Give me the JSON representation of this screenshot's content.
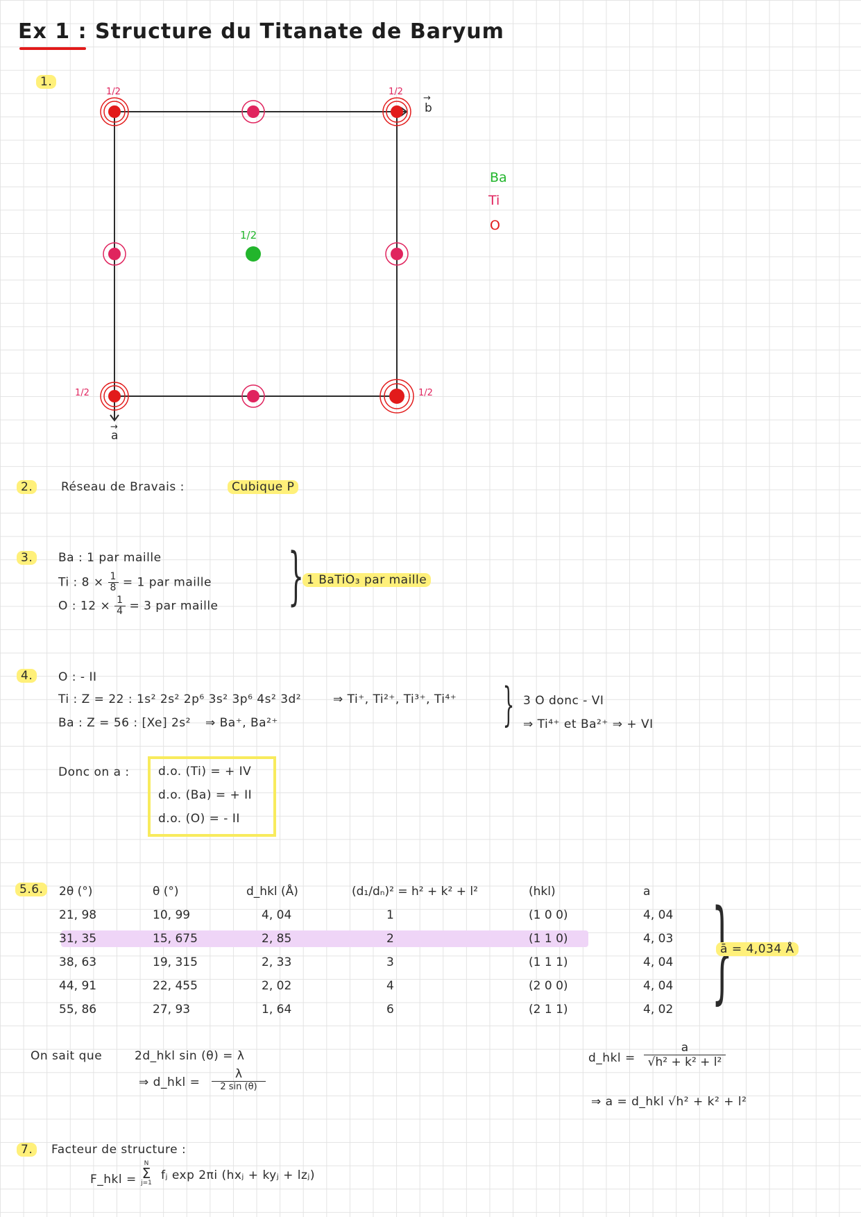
{
  "title": "Ex 1 : Structure du Titanate de Baryum",
  "q1": {
    "number": "1.",
    "fraction_label": "1/2",
    "vec_b": "b",
    "vec_a": "a",
    "legend": [
      "Ba",
      "Ti",
      "O"
    ],
    "colors": {
      "Ba": "#22b52c",
      "Ti": "#e0245e",
      "O": "#e21b1b"
    }
  },
  "q2": {
    "number": "2.",
    "label": "Réseau de Bravais :",
    "answer": "Cubique P"
  },
  "q3": {
    "number": "3.",
    "ba_line": "Ba : 1 par maille",
    "ti_prefix": "Ti : 8 ×",
    "ti_frac": [
      "1",
      "8"
    ],
    "ti_suffix": "= 1 par maille",
    "o_prefix": "O : 12 ×",
    "o_frac": [
      "1",
      "4"
    ],
    "o_suffix": "= 3 par maille",
    "conclusion": "1 BaTiO₃ par maille"
  },
  "q4": {
    "number": "4.",
    "o_line": "O : - II",
    "ti_line": "Ti : Z = 22 : 1s² 2s² 2p⁶ 3s² 3p⁶ 4s² 3d²",
    "ti_ions": "⇒ Ti⁺, Ti²⁺, Ti³⁺, Ti⁴⁺",
    "ba_line": "Ba : Z = 56 : [Xe] 2s²",
    "ba_ions": "⇒ Ba⁺, Ba²⁺",
    "right_1": "3 O donc - VI",
    "right_2": "⇒ Ti⁴⁺ et Ba²⁺ ⇒ + VI",
    "donc": "Donc on a :",
    "do_ti": "d.o. (Ti) = + IV",
    "do_ba": "d.o. (Ba) = + II",
    "do_o": "d.o. (O) = - II"
  },
  "q56": {
    "number": "5.6.",
    "headers": [
      "2θ (°)",
      "θ (°)",
      "d_hkl (Å)",
      "(d₁/dₙ)² = h² + k² + l²",
      "(hkl)",
      "a"
    ],
    "rows": [
      [
        "21, 98",
        "10, 99",
        "4, 04",
        "1",
        "(1 0 0)",
        "4, 04"
      ],
      [
        "31, 35",
        "15, 675",
        "2, 85",
        "2",
        "(1 1 0)",
        "4, 03"
      ],
      [
        "38, 63",
        "19, 315",
        "2, 33",
        "3",
        "(1 1 1)",
        "4, 04"
      ],
      [
        "44, 91",
        "22, 455",
        "2, 02",
        "4",
        "(2 0 0)",
        "4, 04"
      ],
      [
        "55, 86",
        "27, 93",
        "1, 64",
        "6",
        "(2 1 1)",
        "4, 02"
      ]
    ],
    "mean": "ā = 4,034 Å",
    "on_sait": "On sait que",
    "bragg": "2d_hkl sin (θ) = λ",
    "dhkl_eq": "⇒ d_hkl =",
    "dhkl_num": "λ",
    "dhkl_den": "2 sin (θ)",
    "cubic_lhs": "d_hkl =",
    "cubic_num": "a",
    "cubic_den": "√h² + k² + l²",
    "a_eq": "⇒ a = d_hkl √h² + k² + l²"
  },
  "q7": {
    "number": "7.",
    "label": "Facteur de structure :",
    "formula_lhs": "F_hkl =",
    "sum_top": "N",
    "sum_bottom": "j=1",
    "formula_rhs": "fⱼ exp 2πi (hxⱼ + kyⱼ + lzⱼ)"
  }
}
